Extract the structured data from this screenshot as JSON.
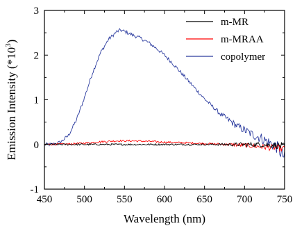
{
  "chart_data": {
    "type": "line",
    "title": "",
    "xlabel": "Wavelength (nm)",
    "ylabel_prefix": "Emission Intensity (*10",
    "ylabel_exp": "3",
    "ylabel_suffix": ")",
    "xlim": [
      450,
      750
    ],
    "ylim": [
      -1,
      3
    ],
    "xticks": [
      450,
      500,
      550,
      600,
      650,
      700,
      750
    ],
    "yticks": [
      -1,
      0,
      1,
      2,
      3
    ],
    "grid": false,
    "legend_position": "top-right",
    "series": [
      {
        "name": "m-MR",
        "color": "#000000",
        "x": [
          450,
          475,
          500,
          525,
          550,
          575,
          600,
          625,
          650,
          675,
          700,
          720,
          740,
          750
        ],
        "y": [
          0.0,
          0.0,
          0.0,
          0.0,
          0.0,
          0.0,
          0.0,
          0.0,
          0.0,
          0.0,
          0.0,
          0.0,
          -0.02,
          -0.05
        ],
        "noise": 0.02
      },
      {
        "name": "m-MRAA",
        "color": "#ff0000",
        "x": [
          450,
          480,
          500,
          520,
          540,
          560,
          580,
          600,
          620,
          650,
          680,
          700,
          720,
          740,
          750
        ],
        "y": [
          0.0,
          0.01,
          0.03,
          0.06,
          0.08,
          0.08,
          0.07,
          0.05,
          0.04,
          0.02,
          0.0,
          -0.02,
          -0.05,
          -0.08,
          -0.1
        ],
        "noise": 0.02
      },
      {
        "name": "copolymer",
        "color": "#2a3a9e",
        "x": [
          450,
          460,
          470,
          480,
          490,
          500,
          510,
          520,
          530,
          540,
          545,
          550,
          560,
          570,
          580,
          590,
          600,
          610,
          620,
          630,
          640,
          650,
          660,
          670,
          680,
          690,
          700,
          710,
          720,
          730,
          740,
          750
        ],
        "y": [
          0.0,
          0.0,
          0.05,
          0.2,
          0.55,
          1.05,
          1.6,
          2.05,
          2.35,
          2.52,
          2.56,
          2.53,
          2.45,
          2.38,
          2.28,
          2.15,
          2.0,
          1.82,
          1.62,
          1.42,
          1.22,
          1.02,
          0.85,
          0.68,
          0.55,
          0.42,
          0.32,
          0.22,
          0.15,
          0.05,
          -0.05,
          -0.3
        ],
        "noise": 0.04
      }
    ]
  }
}
